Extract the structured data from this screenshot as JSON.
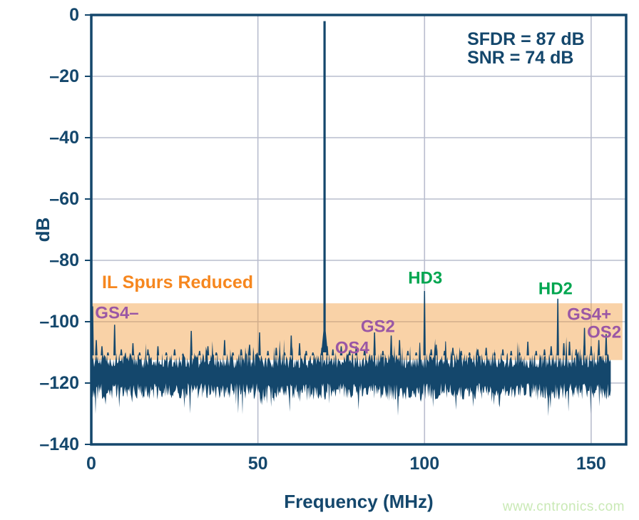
{
  "page": {
    "watermark": "www.cntronics.com"
  },
  "colors": {
    "navy": "#14476C",
    "grid": "#B9BDCE",
    "band_fill": "rgba(242,155,59,0.45)",
    "orange": "#F6871F",
    "purple": "#9A57A5",
    "green": "#00A650",
    "watermark_green": "#C9E9B5",
    "background": "#FFFFFF"
  },
  "chart_data": {
    "type": "line",
    "title": "",
    "xlabel": "Frequency (MHz)",
    "ylabel": "dB",
    "xlim": [
      0,
      160.5
    ],
    "ylim": [
      -140,
      0
    ],
    "grid": true,
    "x_ticks": [
      {
        "value": 0,
        "label": "0"
      },
      {
        "value": 50,
        "label": "50"
      },
      {
        "value": 100,
        "label": "100"
      },
      {
        "value": 150,
        "label": "150"
      }
    ],
    "y_ticks": [
      {
        "value": 0,
        "label": "0"
      },
      {
        "value": -20,
        "label": "–20"
      },
      {
        "value": -40,
        "label": "–40"
      },
      {
        "value": -60,
        "label": "–60"
      },
      {
        "value": -80,
        "label": "–80"
      },
      {
        "value": -100,
        "label": "–100"
      },
      {
        "value": -120,
        "label": "–120"
      },
      {
        "value": -140,
        "label": "–140"
      }
    ],
    "stats_box": {
      "lines": [
        "SFDR = 87 dB",
        "SNR = 74 dB"
      ],
      "f_MHz": 112.8,
      "dB": -7.9
    },
    "highlight_band": {
      "label": "IL Spurs Reduced",
      "label_color": "orange",
      "label_f_MHz": 3.2,
      "label_dB": -87.2,
      "from_dB": -94,
      "to_dB": -112.5,
      "from_MHz": 0,
      "to_MHz": 159.4
    },
    "fundamental": {
      "f_MHz": 70,
      "dB": -2
    },
    "noise_floor": {
      "top_dB": -112.3,
      "bottom_dB": -122.5,
      "end_MHz": 156,
      "seed": 20240417
    },
    "spurs": [
      [
        0.4,
        -95
      ],
      [
        1.5,
        -106
      ],
      [
        3.2,
        -108
      ],
      [
        5,
        -110
      ],
      [
        7,
        -101
      ],
      [
        9,
        -109
      ],
      [
        12.5,
        -107
      ],
      [
        14.5,
        -110
      ],
      [
        17,
        -109
      ],
      [
        20,
        -108
      ],
      [
        22.5,
        -110
      ],
      [
        25,
        -109
      ],
      [
        27.5,
        -110.5
      ],
      [
        30,
        -103
      ],
      [
        32.5,
        -109.5
      ],
      [
        35,
        -108
      ],
      [
        37.5,
        -110
      ],
      [
        40,
        -106
      ],
      [
        42.5,
        -110
      ],
      [
        45,
        -109
      ],
      [
        47.5,
        -107.5
      ],
      [
        50.5,
        -103.5
      ],
      [
        53,
        -109.5
      ],
      [
        55.5,
        -108.5
      ],
      [
        58,
        -110
      ],
      [
        60,
        -104.5
      ],
      [
        62.5,
        -107
      ],
      [
        64.5,
        -109.5
      ],
      [
        66.5,
        -110
      ],
      [
        69.2,
        -108.5
      ],
      [
        70.8,
        -108
      ],
      [
        72.5,
        -109
      ],
      [
        75,
        -108
      ],
      [
        77.5,
        -109.5
      ],
      [
        79.5,
        -108
      ],
      [
        82,
        -109
      ],
      [
        85,
        -103.5
      ],
      [
        87.5,
        -109.5
      ],
      [
        90,
        -104.5
      ],
      [
        92.5,
        -106
      ],
      [
        95,
        -109.5
      ],
      [
        97.5,
        -110
      ],
      [
        100,
        -90
      ],
      [
        102,
        -109
      ],
      [
        103.5,
        -107.5
      ],
      [
        106,
        -109.5
      ],
      [
        108.5,
        -108.5
      ],
      [
        111,
        -109.5
      ],
      [
        113.5,
        -110
      ],
      [
        116,
        -109
      ],
      [
        118.5,
        -108.5
      ],
      [
        121,
        -110
      ],
      [
        123.5,
        -109
      ],
      [
        126,
        -109.5
      ],
      [
        128.5,
        -110
      ],
      [
        131,
        -106.5
      ],
      [
        133.5,
        -109.5
      ],
      [
        136,
        -109
      ],
      [
        138,
        -108
      ],
      [
        140,
        -92.5
      ],
      [
        141.8,
        -107
      ],
      [
        143.5,
        -106.5
      ],
      [
        145.5,
        -109
      ],
      [
        148,
        -102
      ],
      [
        150,
        -108
      ],
      [
        152.3,
        -106
      ],
      [
        154.5,
        -104
      ]
    ],
    "spur_labels": [
      {
        "text": "GS4–",
        "f_MHz": 7.7,
        "dB": -97.2,
        "color": "purple",
        "anchor": "middle"
      },
      {
        "text": "OS4",
        "f_MHz": 78.3,
        "dB": -108.6,
        "color": "purple",
        "anchor": "middle"
      },
      {
        "text": "GS2",
        "f_MHz": 86.0,
        "dB": -101.6,
        "color": "purple",
        "anchor": "middle"
      },
      {
        "text": "HD3",
        "f_MHz": 100.2,
        "dB": -85.8,
        "color": "green",
        "anchor": "middle"
      },
      {
        "text": "HD2",
        "f_MHz": 139.3,
        "dB": -89.3,
        "color": "green",
        "anchor": "middle"
      },
      {
        "text": "GS4+",
        "f_MHz": 149.4,
        "dB": -97.7,
        "color": "purple",
        "anchor": "middle"
      },
      {
        "text": "OS2",
        "f_MHz": 153.9,
        "dB": -103.5,
        "color": "purple",
        "anchor": "middle"
      }
    ]
  }
}
